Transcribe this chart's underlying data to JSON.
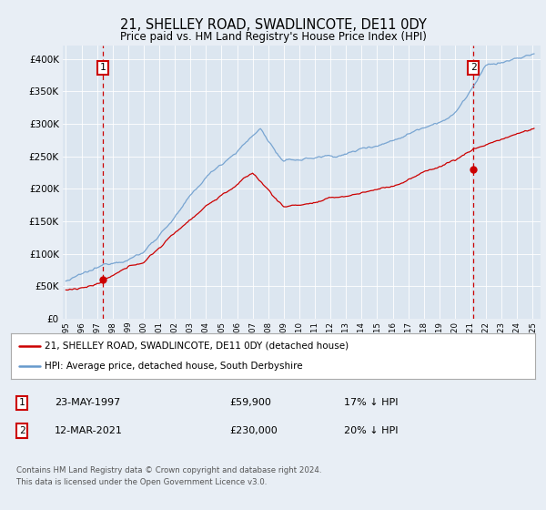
{
  "title": "21, SHELLEY ROAD, SWADLINCOTE, DE11 0DY",
  "subtitle": "Price paid vs. HM Land Registry's House Price Index (HPI)",
  "background_color": "#e8eef5",
  "plot_bg_color": "#dce6f0",
  "transaction1_date": 1997.39,
  "transaction1_price": 59900,
  "transaction1_display": "23-MAY-1997",
  "transaction1_hpi_pct": "17% ↓ HPI",
  "transaction2_date": 2021.19,
  "transaction2_price": 230000,
  "transaction2_display": "12-MAR-2021",
  "transaction2_hpi_pct": "20% ↓ HPI",
  "legend_line1": "21, SHELLEY ROAD, SWADLINCOTE, DE11 0DY (detached house)",
  "legend_line2": "HPI: Average price, detached house, South Derbyshire",
  "footer1": "Contains HM Land Registry data © Crown copyright and database right 2024.",
  "footer2": "This data is licensed under the Open Government Licence v3.0.",
  "ylim": [
    0,
    420000
  ],
  "xlim": [
    1994.8,
    2025.5
  ],
  "red_color": "#cc0000",
  "blue_color": "#6699cc",
  "grid_color": "#ffffff"
}
